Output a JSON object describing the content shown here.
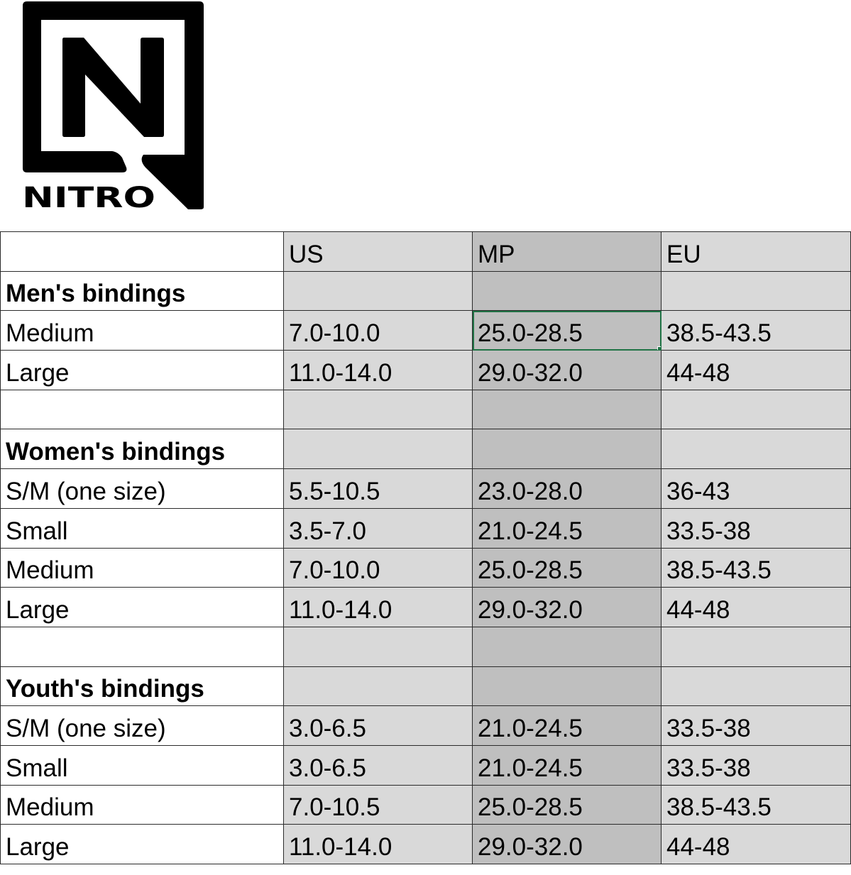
{
  "logo": {
    "text": "NITRO"
  },
  "table": {
    "headers": [
      "",
      "US",
      "MP",
      "EU"
    ],
    "rows": [
      {
        "type": "section",
        "cells": [
          "Men's bindings",
          "",
          "",
          ""
        ]
      },
      {
        "type": "data",
        "cells": [
          "Medium",
          "7.0-10.0",
          "25.0-28.5",
          "38.5-43.5"
        ],
        "selected_col": 2
      },
      {
        "type": "data",
        "cells": [
          "Large",
          "11.0-14.0",
          "29.0-32.0",
          "44-48"
        ]
      },
      {
        "type": "blank",
        "cells": [
          "",
          "",
          "",
          ""
        ]
      },
      {
        "type": "section",
        "cells": [
          "Women's bindings",
          "",
          "",
          ""
        ]
      },
      {
        "type": "data",
        "cells": [
          "S/M (one size)",
          "5.5-10.5",
          "23.0-28.0",
          "36-43"
        ]
      },
      {
        "type": "data",
        "cells": [
          "Small",
          "3.5-7.0",
          "21.0-24.5",
          "33.5-38"
        ]
      },
      {
        "type": "data",
        "cells": [
          "Medium",
          "7.0-10.0",
          "25.0-28.5",
          "38.5-43.5"
        ]
      },
      {
        "type": "data",
        "cells": [
          "Large",
          "11.0-14.0",
          "29.0-32.0",
          "44-48"
        ]
      },
      {
        "type": "blank",
        "cells": [
          "",
          "",
          "",
          ""
        ]
      },
      {
        "type": "section",
        "cells": [
          "Youth's bindings",
          "",
          "",
          ""
        ]
      },
      {
        "type": "data",
        "cells": [
          "S/M (one size)",
          "3.0-6.5",
          "21.0-24.5",
          "33.5-38"
        ]
      },
      {
        "type": "data",
        "cells": [
          "Small",
          "3.0-6.5",
          "21.0-24.5",
          "33.5-38"
        ]
      },
      {
        "type": "data",
        "cells": [
          "Medium",
          "7.0-10.5",
          "25.0-28.5",
          "38.5-43.5"
        ]
      },
      {
        "type": "data",
        "cells": [
          "Large",
          "11.0-14.0",
          "29.0-32.0",
          "44-48"
        ]
      }
    ]
  },
  "colors": {
    "selection": "#217346",
    "column_fill": "#d9d9d9",
    "mp_column_fill": "#bfbfbf"
  }
}
